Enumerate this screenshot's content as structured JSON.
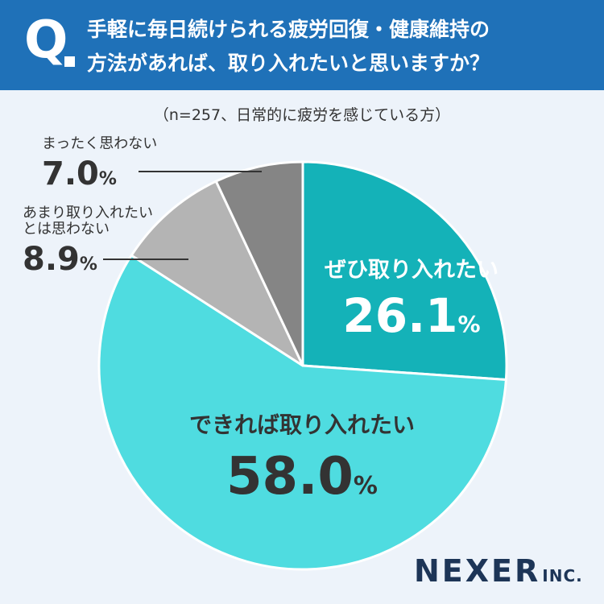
{
  "header": {
    "q_mark": "Q",
    "question_line1": "手軽に毎日続けられる疲労回復・健康維持の",
    "question_line2": "方法があれば、取り入れたいと思いますか？"
  },
  "sample_note": "（n=257、日常的に疲労を感じている方）",
  "chart_data": {
    "type": "pie",
    "start": "12 o'clock",
    "direction": "clockwise",
    "slices": [
      {
        "label": "ぜひ取り入れたい",
        "value": 26.1,
        "value_text": "26.1",
        "color": "#14b2b8"
      },
      {
        "label": "できれば取り入れたい",
        "value": 58.0,
        "value_text": "58.0",
        "color": "#4fdce0"
      },
      {
        "label_lines": [
          "あまり取り入れたい",
          "とは思わない"
        ],
        "value": 8.9,
        "value_text": "8.9",
        "color": "#b4b4b4"
      },
      {
        "label": "まったく思わない",
        "value": 7.0,
        "value_text": "7.0",
        "color": "#858585"
      }
    ],
    "unit": "%"
  },
  "logo": {
    "name": "NEXER",
    "suffix": "INC."
  }
}
